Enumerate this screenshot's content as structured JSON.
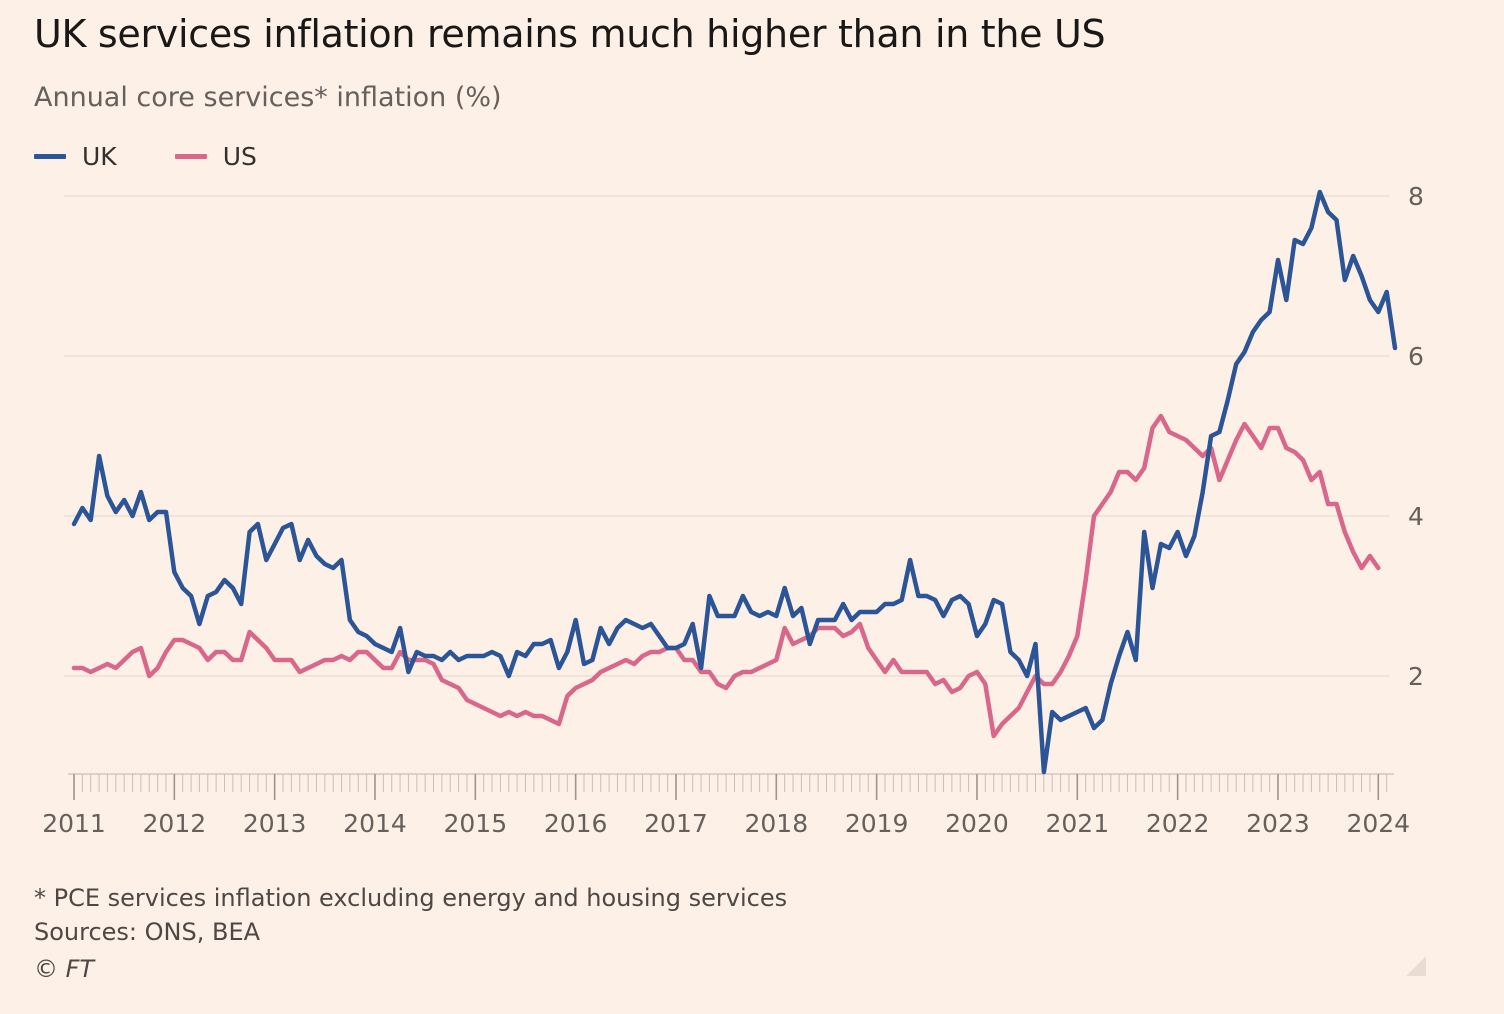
{
  "header": {
    "title": "UK services inflation remains much higher than in the US",
    "subtitle": "Annual core services* inflation (%)"
  },
  "legend": [
    {
      "label": "UK",
      "color": "#2c5597"
    },
    {
      "label": "US",
      "color": "#d9668b"
    }
  ],
  "footer": {
    "note": "* PCE services inflation excluding energy and housing services",
    "source": "Sources: ONS, BEA",
    "copyright": "© FT"
  },
  "chart_data": {
    "type": "line",
    "x_start": "2011-01",
    "x_frequency": "monthly",
    "x_ticks": [
      "2011",
      "2012",
      "2013",
      "2014",
      "2015",
      "2016",
      "2017",
      "2018",
      "2019",
      "2020",
      "2021",
      "2022",
      "2023",
      "2024"
    ],
    "y_ticks": [
      2,
      4,
      6,
      8
    ],
    "ylim": [
      0.8,
      8.3
    ],
    "y_axis_side": "right",
    "grid": true,
    "series": [
      {
        "name": "UK",
        "color": "#2c5597",
        "values": [
          3.9,
          4.1,
          3.95,
          4.75,
          4.25,
          4.05,
          4.2,
          4.0,
          4.3,
          3.95,
          4.05,
          4.05,
          3.3,
          3.1,
          3.0,
          2.65,
          3.0,
          3.05,
          3.2,
          3.1,
          2.9,
          3.8,
          3.9,
          3.45,
          3.65,
          3.85,
          3.9,
          3.45,
          3.7,
          3.5,
          3.4,
          3.35,
          3.45,
          2.7,
          2.55,
          2.5,
          2.4,
          2.35,
          2.3,
          2.6,
          2.05,
          2.3,
          2.25,
          2.25,
          2.2,
          2.3,
          2.2,
          2.25,
          2.25,
          2.25,
          2.3,
          2.25,
          2.0,
          2.3,
          2.25,
          2.4,
          2.4,
          2.45,
          2.1,
          2.3,
          2.7,
          2.15,
          2.2,
          2.6,
          2.4,
          2.6,
          2.7,
          2.65,
          2.6,
          2.65,
          2.5,
          2.35,
          2.35,
          2.4,
          2.65,
          2.1,
          3.0,
          2.75,
          2.75,
          2.75,
          3.0,
          2.8,
          2.75,
          2.8,
          2.75,
          3.1,
          2.75,
          2.85,
          2.4,
          2.7,
          2.7,
          2.7,
          2.9,
          2.7,
          2.8,
          2.8,
          2.8,
          2.9,
          2.9,
          2.95,
          3.45,
          3.0,
          3.0,
          2.95,
          2.75,
          2.95,
          3.0,
          2.9,
          2.5,
          2.65,
          2.95,
          2.9,
          2.3,
          2.2,
          2.0,
          2.4,
          0.8,
          1.55,
          1.45,
          1.5,
          1.55,
          1.6,
          1.35,
          1.45,
          1.9,
          2.25,
          2.55,
          2.2,
          3.8,
          3.1,
          3.65,
          3.6,
          3.8,
          3.5,
          3.75,
          4.3,
          5.0,
          5.05,
          5.45,
          5.9,
          6.05,
          6.3,
          6.45,
          6.55,
          7.2,
          6.7,
          7.45,
          7.4,
          7.6,
          8.05,
          7.8,
          7.7,
          6.95,
          7.25,
          7.0,
          6.7,
          6.55,
          6.8,
          6.1
        ]
      },
      {
        "name": "US",
        "color": "#d9668b",
        "values": [
          2.1,
          2.1,
          2.05,
          2.1,
          2.15,
          2.1,
          2.2,
          2.3,
          2.35,
          2.0,
          2.1,
          2.3,
          2.45,
          2.45,
          2.4,
          2.35,
          2.2,
          2.3,
          2.3,
          2.2,
          2.2,
          2.55,
          2.45,
          2.35,
          2.2,
          2.2,
          2.2,
          2.05,
          2.1,
          2.15,
          2.2,
          2.2,
          2.25,
          2.2,
          2.3,
          2.3,
          2.2,
          2.1,
          2.1,
          2.3,
          2.2,
          2.2,
          2.2,
          2.15,
          1.95,
          1.9,
          1.85,
          1.7,
          1.65,
          1.6,
          1.55,
          1.5,
          1.55,
          1.5,
          1.55,
          1.5,
          1.5,
          1.45,
          1.4,
          1.75,
          1.85,
          1.9,
          1.95,
          2.05,
          2.1,
          2.15,
          2.2,
          2.15,
          2.25,
          2.3,
          2.3,
          2.35,
          2.35,
          2.2,
          2.2,
          2.05,
          2.05,
          1.9,
          1.85,
          2.0,
          2.05,
          2.05,
          2.1,
          2.15,
          2.2,
          2.6,
          2.4,
          2.45,
          2.5,
          2.6,
          2.6,
          2.6,
          2.5,
          2.55,
          2.65,
          2.35,
          2.2,
          2.05,
          2.2,
          2.05,
          2.05,
          2.05,
          2.05,
          1.9,
          1.95,
          1.8,
          1.85,
          2.0,
          2.05,
          1.9,
          1.25,
          1.4,
          1.5,
          1.6,
          1.8,
          2.0,
          1.9,
          1.9,
          2.05,
          2.25,
          2.5,
          3.2,
          4.0,
          4.15,
          4.3,
          4.55,
          4.55,
          4.45,
          4.6,
          5.1,
          5.25,
          5.05,
          5.0,
          4.95,
          4.85,
          4.75,
          4.85,
          4.45,
          4.7,
          4.95,
          5.15,
          5.0,
          4.85,
          5.1,
          5.1,
          4.85,
          4.8,
          4.7,
          4.45,
          4.55,
          4.15,
          4.15,
          3.8,
          3.55,
          3.35,
          3.5,
          3.35
        ]
      }
    ]
  }
}
